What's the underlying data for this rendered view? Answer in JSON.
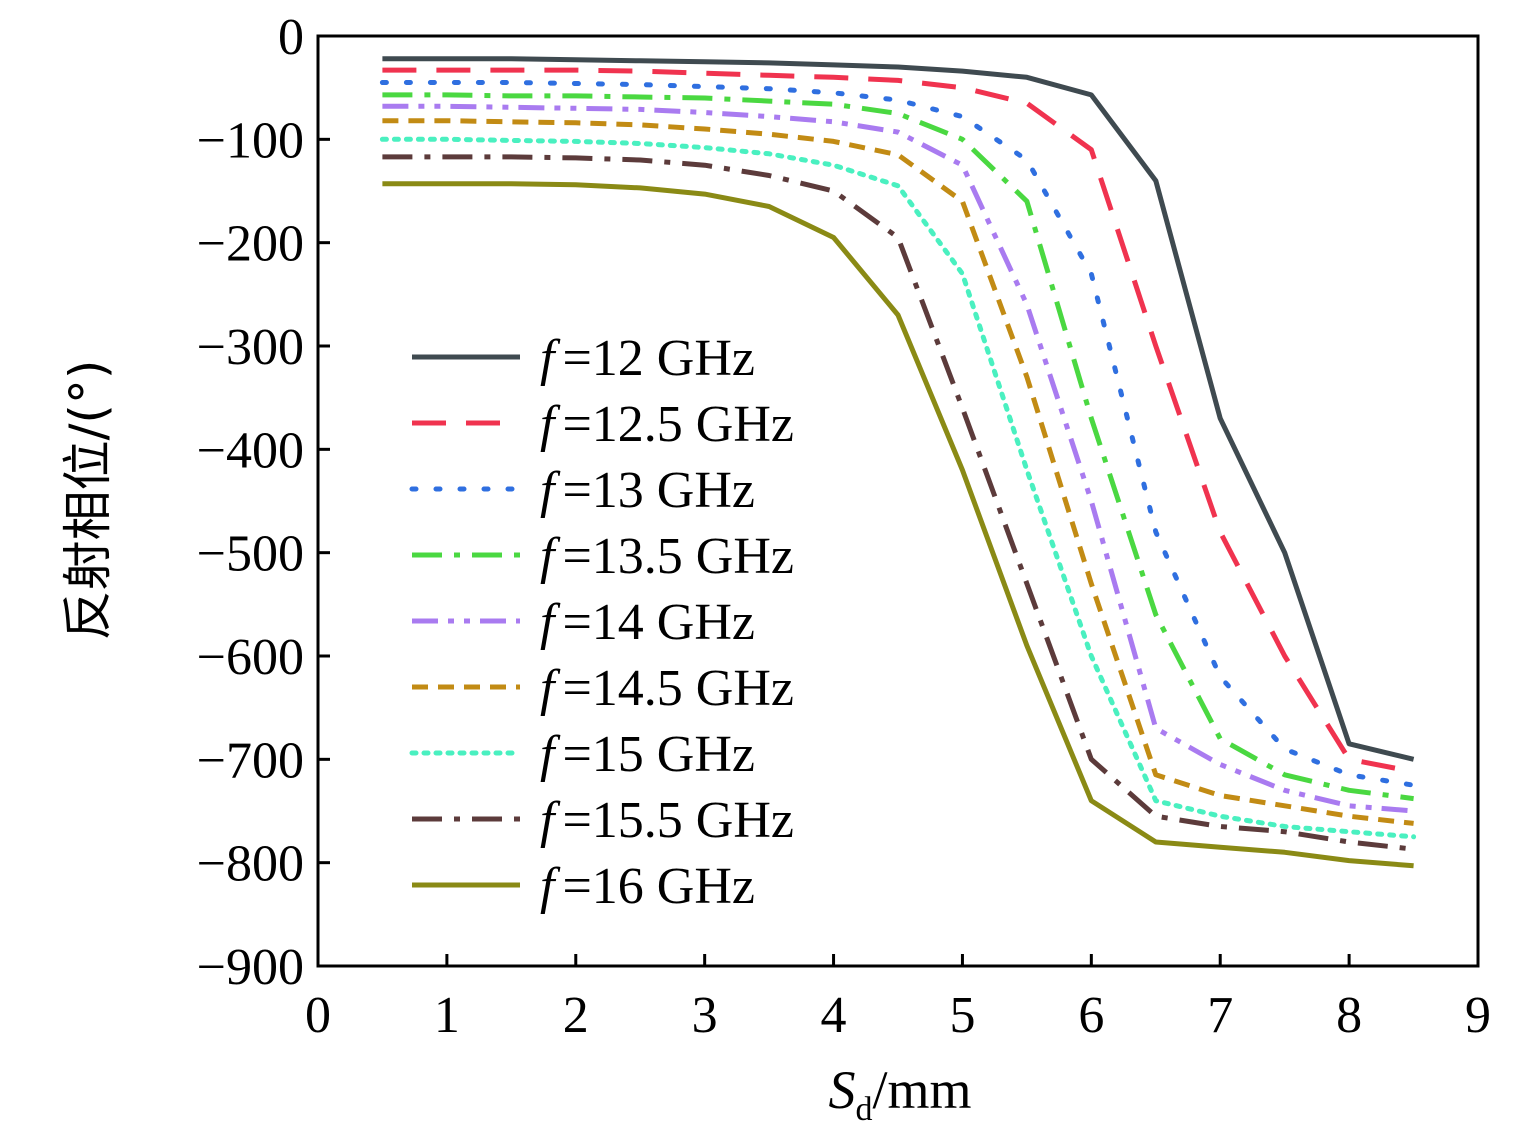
{
  "chart_data": {
    "type": "line",
    "xlabel": {
      "main": "S",
      "sub": "d",
      "unit": "/mm"
    },
    "ylabel": "反射相位/(°)",
    "xlim": [
      0,
      9
    ],
    "ylim": [
      -900,
      0
    ],
    "xticks": [
      0,
      1,
      2,
      3,
      4,
      5,
      6,
      7,
      8,
      9
    ],
    "yticks": [
      0,
      -100,
      -200,
      -300,
      -400,
      -500,
      -600,
      -700,
      -800,
      -900
    ],
    "ytick_labels": [
      "0",
      "−100",
      "−200",
      "−300",
      "−400",
      "−500",
      "−600",
      "−700",
      "−800",
      "−900"
    ],
    "grid": false,
    "legend_position": "center-left",
    "x": [
      0.5,
      1,
      1.5,
      2,
      2.5,
      3,
      3.5,
      4,
      4.5,
      5,
      5.5,
      6,
      6.5,
      7,
      7.5,
      8,
      8.5
    ],
    "series": [
      {
        "name": "f =12 GHz",
        "freq": "=12 GHz",
        "color": "#3f4a50",
        "dash": "solid",
        "values": [
          -22,
          -22,
          -22,
          -23,
          -24,
          -25,
          -26,
          -28,
          -30,
          -34,
          -40,
          -57,
          -140,
          -370,
          -500,
          -685,
          -700
        ]
      },
      {
        "name": "f =12.5 GHz",
        "freq": "=12.5 GHz",
        "color": "#f0334f",
        "dash": "dash",
        "values": [
          -33,
          -33,
          -33,
          -33,
          -34,
          -36,
          -38,
          -40,
          -43,
          -50,
          -65,
          -110,
          -300,
          -480,
          -600,
          -700,
          -712
        ]
      },
      {
        "name": "f =13 GHz",
        "freq": "=13 GHz",
        "color": "#2f6fe0",
        "dash": "dot",
        "values": [
          -45,
          -45,
          -45,
          -46,
          -47,
          -49,
          -51,
          -55,
          -62,
          -78,
          -120,
          -230,
          -480,
          -620,
          -690,
          -715,
          -725
        ]
      },
      {
        "name": "f =13.5 GHz",
        "freq": "=13.5 GHz",
        "color": "#4ad841",
        "dash": "dashdot",
        "values": [
          -57,
          -57,
          -58,
          -58,
          -59,
          -60,
          -63,
          -66,
          -75,
          -100,
          -160,
          -370,
          -560,
          -680,
          -715,
          -730,
          -738
        ]
      },
      {
        "name": "f =14 GHz",
        "freq": "=14 GHz",
        "color": "#a97bf0",
        "dash": "dashdotdot",
        "values": [
          -68,
          -68,
          -69,
          -70,
          -71,
          -74,
          -78,
          -83,
          -93,
          -125,
          -260,
          -450,
          -670,
          -705,
          -730,
          -745,
          -750
        ]
      },
      {
        "name": "f =14.5 GHz",
        "freq": "=14.5 GHz",
        "color": "#c28b14",
        "dash": "shortdash",
        "values": [
          -82,
          -82,
          -83,
          -84,
          -86,
          -90,
          -95,
          -102,
          -115,
          -160,
          -330,
          -530,
          -715,
          -735,
          -745,
          -755,
          -762
        ]
      },
      {
        "name": "f =15 GHz",
        "freq": "=15 GHz",
        "color": "#4af0c0",
        "dash": "densedot",
        "values": [
          -100,
          -100,
          -101,
          -102,
          -104,
          -108,
          -114,
          -125,
          -145,
          -230,
          -420,
          -600,
          -740,
          -755,
          -765,
          -770,
          -775
        ]
      },
      {
        "name": "f =15.5 GHz",
        "freq": "=15.5 GHz",
        "color": "#5c3b3b",
        "dash": "dashdot",
        "values": [
          -117,
          -117,
          -117,
          -118,
          -120,
          -125,
          -135,
          -150,
          -195,
          -360,
          -530,
          -700,
          -755,
          -765,
          -770,
          -780,
          -787
        ]
      },
      {
        "name": "f =16 GHz",
        "freq": "=16 GHz",
        "color": "#8a8a15",
        "dash": "solid",
        "values": [
          -143,
          -143,
          -143,
          -144,
          -147,
          -153,
          -165,
          -195,
          -270,
          -420,
          -590,
          -740,
          -780,
          -785,
          -790,
          -798,
          -803
        ]
      }
    ]
  }
}
